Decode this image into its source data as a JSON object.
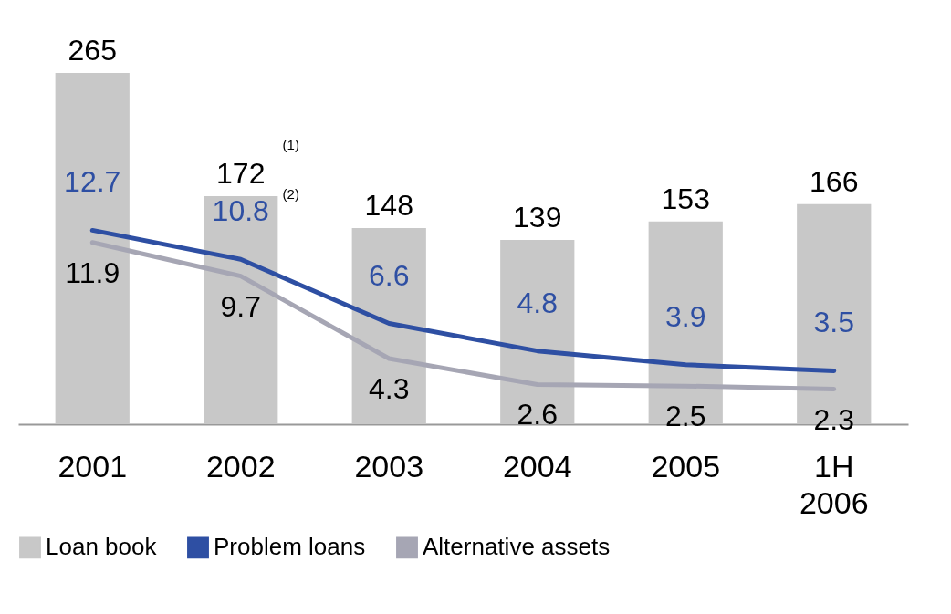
{
  "chart_data": {
    "type": "bar",
    "categories": [
      "2001",
      "2002",
      "2003",
      "2004",
      "2005",
      "1H 2006"
    ],
    "series": [
      {
        "name": "Loan book",
        "color": "#c8c8c8",
        "values": [
          265,
          172,
          148,
          139,
          153,
          166
        ]
      },
      {
        "name": "Problem loans",
        "type": "line",
        "axis": "y2",
        "color": "#2e4fa3",
        "values": [
          12.7,
          10.8,
          6.6,
          4.8,
          3.9,
          3.5
        ]
      },
      {
        "name": "Alternative assets",
        "type": "line",
        "axis": "y2",
        "color": "#a6a6b4",
        "values": [
          11.9,
          9.7,
          4.3,
          2.6,
          2.5,
          2.3
        ]
      }
    ],
    "ylim": [
      0,
      265
    ],
    "y2lim": [
      0,
      23
    ],
    "data_labels": true,
    "tick_labels": "x",
    "grid": false,
    "legend": "bottom",
    "marker": "none",
    "annotations": [
      "(1)",
      "(2)"
    ]
  }
}
